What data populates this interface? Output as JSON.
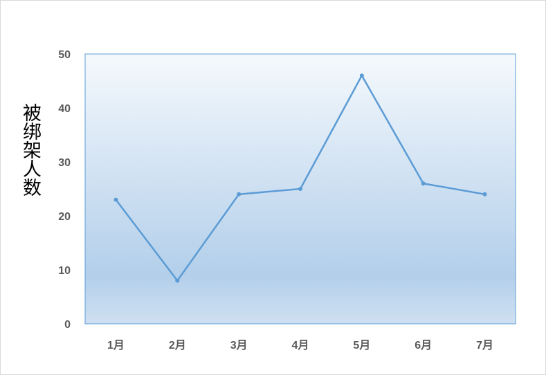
{
  "chart_data": {
    "type": "line",
    "title": "",
    "xlabel": "",
    "ylabel": "被绑架人数",
    "categories": [
      "1月",
      "2月",
      "3月",
      "4月",
      "5月",
      "6月",
      "7月"
    ],
    "series": [
      {
        "values": [
          23,
          8,
          24,
          25,
          46,
          26,
          24
        ]
      }
    ],
    "ylim": [
      0,
      50
    ],
    "yticks": [
      0,
      10,
      20,
      30,
      40,
      50
    ],
    "grid": false,
    "legend": "none",
    "colors": {
      "line": "#5b9bd5",
      "plot_border": "#5b9bd5",
      "plot_bg_top": "#f5f9fd",
      "plot_bg_mid": "#b3cfea",
      "plot_bg_bottom": "#cfe0f1",
      "tick_text": "#595959"
    }
  }
}
